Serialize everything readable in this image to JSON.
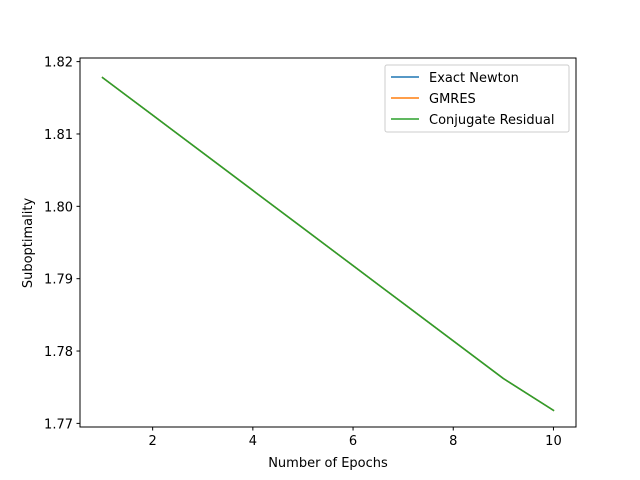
{
  "chart_data": {
    "type": "line",
    "title": "",
    "xlabel": "Number of Epochs",
    "ylabel": "Suboptimality",
    "xlim": [
      0.55,
      10.45
    ],
    "ylim": [
      1.7695,
      1.8205
    ],
    "xticks": [
      2,
      4,
      6,
      8,
      10
    ],
    "xtick_labels": [
      "2",
      "4",
      "6",
      "8",
      "10"
    ],
    "yticks": [
      1.77,
      1.78,
      1.79,
      1.8,
      1.81,
      1.82
    ],
    "ytick_labels": [
      "1.77",
      "1.78",
      "1.79",
      "1.80",
      "1.81",
      "1.82"
    ],
    "grid": false,
    "legend_position": "top-right",
    "x": [
      1,
      2,
      3,
      4,
      5,
      6,
      7,
      8,
      9,
      10
    ],
    "series": [
      {
        "name": "Exact Newton",
        "color": "#1f77b4",
        "values": [
          1.8178,
          1.8126,
          1.8074,
          1.8022,
          1.797,
          1.7918,
          1.7866,
          1.7814,
          1.7762,
          1.7718
        ]
      },
      {
        "name": "GMRES",
        "color": "#ff7f0e",
        "values": [
          1.8178,
          1.8126,
          1.8074,
          1.8022,
          1.797,
          1.7918,
          1.7866,
          1.7814,
          1.7762,
          1.7718
        ]
      },
      {
        "name": "Conjugate Residual",
        "color": "#2ca02c",
        "values": [
          1.8178,
          1.8126,
          1.8074,
          1.8022,
          1.797,
          1.7918,
          1.7866,
          1.7814,
          1.7762,
          1.7718
        ]
      }
    ]
  }
}
